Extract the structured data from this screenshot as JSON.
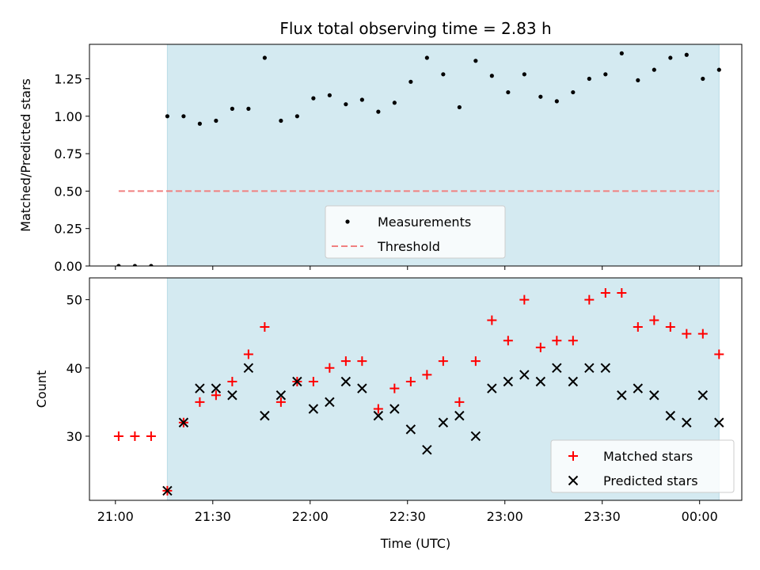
{
  "chart_data": {
    "title": "Flux total observing time = 2.83 h",
    "x_axis": {
      "label": "Time (UTC)",
      "ticks": [
        {
          "minute": 0,
          "label": "21:00"
        },
        {
          "minute": 30,
          "label": "21:30"
        },
        {
          "minute": 60,
          "label": "22:00"
        },
        {
          "minute": 90,
          "label": "22:30"
        },
        {
          "minute": 120,
          "label": "23:00"
        },
        {
          "minute": 150,
          "label": "23:30"
        },
        {
          "minute": 180,
          "label": "00:00"
        }
      ],
      "range_minutes": [
        -8,
        193
      ]
    },
    "observing_window_minutes": [
      16,
      186
    ],
    "observing_window_color": "#d4eaf1",
    "times_minutes": [
      1,
      6,
      11,
      16,
      21,
      26,
      31,
      36,
      41,
      46,
      51,
      56,
      61,
      66,
      71,
      76,
      81,
      86,
      91,
      96,
      101,
      106,
      111,
      116,
      121,
      126,
      131,
      136,
      141,
      146,
      151,
      156,
      161,
      166,
      171,
      176,
      181,
      186
    ],
    "top": {
      "type": "scatter",
      "ylabel": "Matched/Predicted stars",
      "ylim": [
        0,
        1.48
      ],
      "yticks": [
        {
          "v": 0,
          "label": "0.00"
        },
        {
          "v": 0.25,
          "label": "0.25"
        },
        {
          "v": 0.5,
          "label": "0.50"
        },
        {
          "v": 0.75,
          "label": "0.75"
        },
        {
          "v": 1.0,
          "label": "1.00"
        },
        {
          "v": 1.25,
          "label": "1.25"
        }
      ],
      "series": [
        {
          "name": "Measurements",
          "color": "#000000",
          "values": [
            0,
            0,
            0,
            1.0,
            1.0,
            0.95,
            0.97,
            1.05,
            1.05,
            1.39,
            0.97,
            1.0,
            1.12,
            1.14,
            1.08,
            1.11,
            1.03,
            1.09,
            1.23,
            1.39,
            1.28,
            1.06,
            1.37,
            1.27,
            1.16,
            1.28,
            1.13,
            1.1,
            1.16,
            1.25,
            1.28,
            1.42,
            1.24,
            1.31,
            1.39,
            1.41,
            1.25,
            1.31
          ]
        }
      ],
      "threshold": {
        "name": "Threshold",
        "value": 0.5,
        "color": "#f08080",
        "x_range": [
          1,
          186
        ]
      },
      "legend": {
        "placement": "lower center",
        "entries": [
          "Measurements",
          "Threshold"
        ]
      }
    },
    "bottom": {
      "type": "scatter",
      "ylabel": "Count",
      "ylim": [
        20.6,
        53.2
      ],
      "yticks": [
        {
          "v": 30,
          "label": "30"
        },
        {
          "v": 40,
          "label": "40"
        },
        {
          "v": 50,
          "label": "50"
        }
      ],
      "series": [
        {
          "name": "Matched stars",
          "marker": "+",
          "color": "#ff0000",
          "values": [
            30,
            30,
            30,
            22,
            32,
            35,
            36,
            38,
            42,
            46,
            35,
            38,
            38,
            40,
            41,
            41,
            34,
            37,
            38,
            39,
            41,
            35,
            41,
            47,
            44,
            50,
            43,
            44,
            44,
            50,
            51,
            51,
            46,
            47,
            46,
            45,
            45,
            42
          ]
        },
        {
          "name": "Predicted stars",
          "marker": "x",
          "color": "#000000",
          "values": [
            null,
            null,
            null,
            22,
            32,
            37,
            37,
            36,
            40,
            33,
            36,
            38,
            34,
            35,
            38,
            37,
            33,
            34,
            31,
            28,
            32,
            33,
            30,
            37,
            38,
            39,
            38,
            40,
            38,
            40,
            40,
            36,
            37,
            36,
            33,
            32,
            36,
            32
          ]
        }
      ],
      "legend": {
        "placement": "lower right",
        "entries": [
          "Matched stars",
          "Predicted stars"
        ]
      }
    }
  }
}
